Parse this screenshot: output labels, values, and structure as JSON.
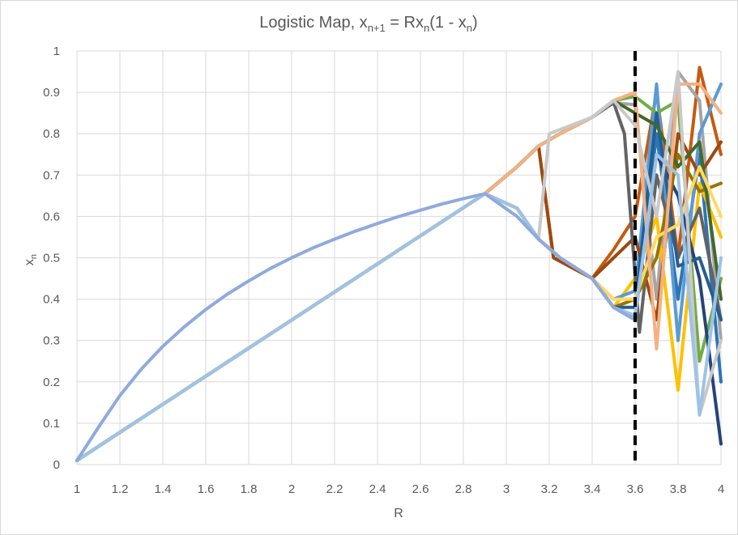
{
  "chart_data": {
    "type": "line",
    "title": {
      "prefix": "Logistic Map, x",
      "sub1": "n+1",
      "middle": " = Rx",
      "sub2": "n",
      "after": "(1 - x",
      "sub3": "n",
      "suffix": ")"
    },
    "xlabel": "R",
    "ylabel": {
      "base": "x",
      "sub": "n"
    },
    "xlim": [
      1,
      4
    ],
    "ylim": [
      0,
      1
    ],
    "xticks": [
      "1",
      "1.2",
      "1.4",
      "1.6",
      "1.8",
      "2",
      "2.2",
      "2.4",
      "2.6",
      "2.8",
      "3",
      "3.2",
      "3.4",
      "3.6",
      "3.8",
      "4"
    ],
    "yticks": [
      "0",
      "0.1",
      "0.2",
      "0.3",
      "0.4",
      "0.5",
      "0.6",
      "0.7",
      "0.8",
      "0.9",
      "1"
    ],
    "grid": true,
    "reference_line": {
      "x": 3.6,
      "color": "#000000",
      "style": "dashed"
    },
    "series": [
      {
        "color": "#2e75b6",
        "points": [
          [
            1,
            0.01
          ],
          [
            2.9,
            0.655
          ],
          [
            3.05,
            0.62
          ],
          [
            3.15,
            0.545
          ],
          [
            3.25,
            0.5
          ],
          [
            3.4,
            0.45
          ],
          [
            3.5,
            0.38
          ],
          [
            3.6,
            0.35
          ],
          [
            3.7,
            0.8
          ],
          [
            3.8,
            0.4
          ],
          [
            3.9,
            0.75
          ],
          [
            4,
            0.2
          ]
        ]
      },
      {
        "color": "#c55a11",
        "points": [
          [
            1,
            0.01
          ],
          [
            2.9,
            0.655
          ],
          [
            3.05,
            0.72
          ],
          [
            3.15,
            0.77
          ],
          [
            3.22,
            0.5
          ],
          [
            3.4,
            0.45
          ],
          [
            3.5,
            0.52
          ],
          [
            3.6,
            0.6
          ],
          [
            3.7,
            0.9
          ],
          [
            3.8,
            0.5
          ],
          [
            3.9,
            0.96
          ],
          [
            4,
            0.75
          ]
        ]
      },
      {
        "color": "#a5a5a5",
        "points": [
          [
            1,
            0.01
          ],
          [
            2.9,
            0.655
          ],
          [
            3.05,
            0.72
          ],
          [
            3.15,
            0.77
          ],
          [
            3.25,
            0.8
          ],
          [
            3.4,
            0.84
          ],
          [
            3.5,
            0.875
          ],
          [
            3.6,
            0.87
          ],
          [
            3.7,
            0.4
          ],
          [
            3.8,
            0.95
          ],
          [
            3.9,
            0.88
          ],
          [
            4,
            0.3
          ]
        ]
      },
      {
        "color": "#ffc000",
        "points": [
          [
            1,
            0.01
          ],
          [
            2.9,
            0.655
          ],
          [
            3.05,
            0.62
          ],
          [
            3.15,
            0.545
          ],
          [
            3.25,
            0.5
          ],
          [
            3.4,
            0.45
          ],
          [
            3.5,
            0.38
          ],
          [
            3.6,
            0.45
          ],
          [
            3.7,
            0.6
          ],
          [
            3.8,
            0.18
          ],
          [
            3.9,
            0.68
          ],
          [
            4,
            0.55
          ]
        ]
      },
      {
        "color": "#5b9bd5",
        "points": [
          [
            1,
            0.01
          ],
          [
            2.9,
            0.655
          ],
          [
            3.05,
            0.62
          ],
          [
            3.15,
            0.545
          ],
          [
            3.25,
            0.5
          ],
          [
            3.4,
            0.45
          ],
          [
            3.5,
            0.4
          ],
          [
            3.6,
            0.42
          ],
          [
            3.7,
            0.92
          ],
          [
            3.8,
            0.3
          ],
          [
            3.9,
            0.8
          ],
          [
            4,
            0.92
          ]
        ]
      },
      {
        "color": "#70ad47",
        "points": [
          [
            1,
            0.01
          ],
          [
            2.9,
            0.655
          ],
          [
            3.05,
            0.72
          ],
          [
            3.15,
            0.77
          ],
          [
            3.25,
            0.8
          ],
          [
            3.4,
            0.84
          ],
          [
            3.5,
            0.88
          ],
          [
            3.6,
            0.89
          ],
          [
            3.7,
            0.85
          ],
          [
            3.8,
            0.88
          ],
          [
            3.9,
            0.25
          ],
          [
            4,
            0.45
          ]
        ]
      },
      {
        "color": "#264478",
        "points": [
          [
            1,
            0.01
          ],
          [
            2.9,
            0.655
          ],
          [
            3.05,
            0.62
          ],
          [
            3.15,
            0.545
          ],
          [
            3.25,
            0.5
          ],
          [
            3.4,
            0.45
          ],
          [
            3.5,
            0.38
          ],
          [
            3.6,
            0.36
          ],
          [
            3.7,
            0.75
          ],
          [
            3.8,
            0.65
          ],
          [
            3.9,
            0.45
          ],
          [
            4,
            0.05
          ]
        ]
      },
      {
        "color": "#9e480e",
        "points": [
          [
            1,
            0.01
          ],
          [
            2.9,
            0.655
          ],
          [
            3.05,
            0.72
          ],
          [
            3.15,
            0.77
          ],
          [
            3.22,
            0.5
          ],
          [
            3.4,
            0.45
          ],
          [
            3.5,
            0.5
          ],
          [
            3.6,
            0.55
          ],
          [
            3.7,
            0.35
          ],
          [
            3.8,
            0.8
          ],
          [
            3.9,
            0.7
          ],
          [
            4,
            0.78
          ]
        ]
      },
      {
        "color": "#636363",
        "points": [
          [
            1,
            0.01
          ],
          [
            2.9,
            0.655
          ],
          [
            3.05,
            0.72
          ],
          [
            3.15,
            0.77
          ],
          [
            3.25,
            0.8
          ],
          [
            3.4,
            0.84
          ],
          [
            3.5,
            0.875
          ],
          [
            3.55,
            0.8
          ],
          [
            3.62,
            0.32
          ],
          [
            3.7,
            0.7
          ],
          [
            3.8,
            0.5
          ],
          [
            3.9,
            0.62
          ],
          [
            4,
            0.35
          ]
        ]
      },
      {
        "color": "#997300",
        "points": [
          [
            1,
            0.01
          ],
          [
            2.9,
            0.655
          ],
          [
            3.05,
            0.62
          ],
          [
            3.15,
            0.545
          ],
          [
            3.25,
            0.5
          ],
          [
            3.4,
            0.45
          ],
          [
            3.5,
            0.38
          ],
          [
            3.6,
            0.4
          ],
          [
            3.7,
            0.5
          ],
          [
            3.8,
            0.75
          ],
          [
            3.9,
            0.66
          ],
          [
            4,
            0.68
          ]
        ]
      },
      {
        "color": "#255e91",
        "points": [
          [
            1,
            0.01
          ],
          [
            2.9,
            0.655
          ],
          [
            3.05,
            0.62
          ],
          [
            3.15,
            0.545
          ],
          [
            3.25,
            0.5
          ],
          [
            3.4,
            0.45
          ],
          [
            3.5,
            0.38
          ],
          [
            3.6,
            0.38
          ],
          [
            3.7,
            0.85
          ],
          [
            3.8,
            0.48
          ],
          [
            3.9,
            0.5
          ],
          [
            4,
            0.35
          ]
        ]
      },
      {
        "color": "#43682b",
        "points": [
          [
            1,
            0.01
          ],
          [
            2.9,
            0.655
          ],
          [
            3.05,
            0.72
          ],
          [
            3.15,
            0.77
          ],
          [
            3.25,
            0.8
          ],
          [
            3.4,
            0.84
          ],
          [
            3.5,
            0.88
          ],
          [
            3.6,
            0.85
          ],
          [
            3.7,
            0.82
          ],
          [
            3.8,
            0.72
          ],
          [
            3.9,
            0.78
          ],
          [
            4,
            0.4
          ]
        ]
      },
      {
        "color": "#ffd966",
        "points": [
          [
            1,
            0.01
          ],
          [
            2.9,
            0.655
          ],
          [
            3.05,
            0.62
          ],
          [
            3.15,
            0.545
          ],
          [
            3.25,
            0.5
          ],
          [
            3.4,
            0.45
          ],
          [
            3.5,
            0.4
          ],
          [
            3.6,
            0.4
          ],
          [
            3.7,
            0.55
          ],
          [
            3.8,
            0.58
          ],
          [
            3.9,
            0.72
          ],
          [
            4,
            0.6
          ]
        ]
      },
      {
        "color": "#f4b183",
        "points": [
          [
            1,
            0.01
          ],
          [
            2.9,
            0.655
          ],
          [
            3.05,
            0.72
          ],
          [
            3.15,
            0.77
          ],
          [
            3.25,
            0.8
          ],
          [
            3.4,
            0.84
          ],
          [
            3.5,
            0.88
          ],
          [
            3.6,
            0.9
          ],
          [
            3.7,
            0.28
          ],
          [
            3.8,
            0.92
          ],
          [
            3.9,
            0.92
          ],
          [
            4,
            0.85
          ]
        ]
      },
      {
        "color": "#c9c9c9",
        "points": [
          [
            1,
            0.01
          ],
          [
            2.9,
            0.655
          ],
          [
            3.05,
            0.62
          ],
          [
            3.15,
            0.545
          ],
          [
            3.2,
            0.8
          ],
          [
            3.4,
            0.84
          ],
          [
            3.5,
            0.88
          ],
          [
            3.6,
            0.82
          ],
          [
            3.7,
            0.6
          ],
          [
            3.8,
            0.95
          ],
          [
            3.9,
            0.12
          ],
          [
            4,
            0.3
          ]
        ]
      },
      {
        "color": "#9dc3e6",
        "points": [
          [
            1,
            0.01
          ],
          [
            2.9,
            0.655
          ],
          [
            3.05,
            0.62
          ],
          [
            3.15,
            0.545
          ],
          [
            3.25,
            0.5
          ],
          [
            3.4,
            0.45
          ],
          [
            3.5,
            0.38
          ],
          [
            3.6,
            0.36
          ],
          [
            3.7,
            0.75
          ],
          [
            3.8,
            0.7
          ],
          [
            3.9,
            0.12
          ],
          [
            4,
            0.5
          ]
        ]
      },
      {
        "color": "#8faadc",
        "points": [
          [
            1,
            0.01
          ],
          [
            1.1,
            0.09
          ],
          [
            1.2,
            0.167
          ],
          [
            1.3,
            0.231
          ],
          [
            1.4,
            0.286
          ],
          [
            1.5,
            0.333
          ],
          [
            1.6,
            0.375
          ],
          [
            1.7,
            0.412
          ],
          [
            1.8,
            0.444
          ],
          [
            1.9,
            0.474
          ],
          [
            2,
            0.5
          ],
          [
            2.1,
            0.524
          ],
          [
            2.2,
            0.545
          ],
          [
            2.3,
            0.565
          ],
          [
            2.4,
            0.583
          ],
          [
            2.5,
            0.6
          ],
          [
            2.6,
            0.615
          ],
          [
            2.7,
            0.63
          ],
          [
            2.8,
            0.643
          ],
          [
            2.9,
            0.655
          ],
          [
            3.05,
            0.6
          ],
          [
            3.15,
            0.545
          ],
          [
            3.25,
            0.5
          ],
          [
            3.4,
            0.45
          ],
          [
            3.5,
            0.38
          ],
          [
            3.6,
            0.35
          ]
        ]
      }
    ]
  }
}
